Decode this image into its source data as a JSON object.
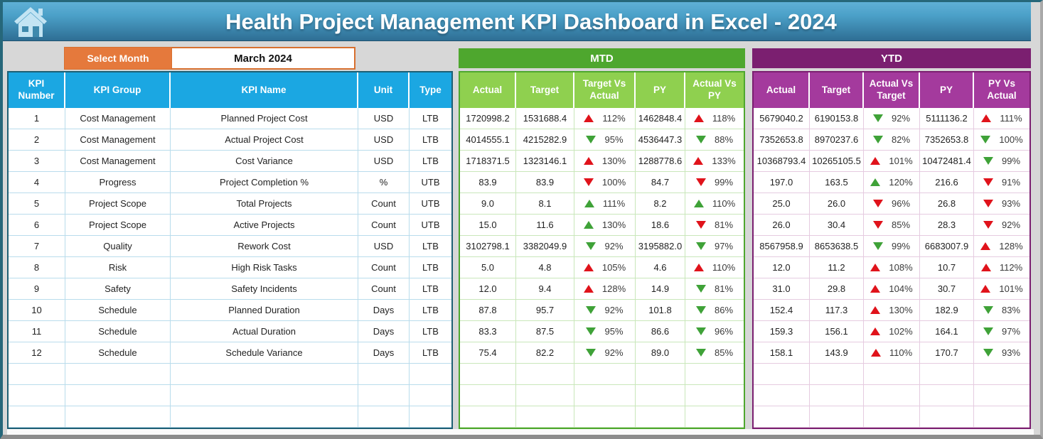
{
  "header": {
    "title": "Health Project Management KPI Dashboard in Excel - 2024"
  },
  "month_selector": {
    "label": "Select Month",
    "value": "March 2024"
  },
  "sections": {
    "mtd_label": "MTD",
    "ytd_label": "YTD"
  },
  "colors": {
    "header_blue_top": "#5FB0D6",
    "header_blue_bottom": "#2E6E94",
    "column_header_blue": "#1BA7E2",
    "mtd_green_dark": "#4EA72E",
    "mtd_green_light": "#8FD04F",
    "ytd_purple_dark": "#7B1F70",
    "ytd_purple_light": "#A43A9D",
    "orange": "#E5793C",
    "trend_red": "#E0131B",
    "trend_green": "#3FA238"
  },
  "table": {
    "left_headers": [
      "KPI Number",
      "KPI Group",
      "KPI Name",
      "Unit",
      "Type"
    ],
    "mtd_headers": [
      "Actual",
      "Target",
      "Target Vs Actual",
      "PY",
      "Actual Vs PY"
    ],
    "ytd_headers": [
      "Actual",
      "Target",
      "Actual Vs Target",
      "PY",
      "PY Vs Actual"
    ],
    "empty_rows": 3,
    "rows": [
      {
        "number": "1",
        "group": "Cost Management",
        "name": "Planned Project Cost",
        "unit": "USD",
        "type": "LTB",
        "mtd": {
          "actual": "1720998.2",
          "target": "1531688.4",
          "target_vs_actual": {
            "arrow": "up",
            "color": "red",
            "value": "112%"
          },
          "py": "1462848.4",
          "actual_vs_py": {
            "arrow": "up",
            "color": "red",
            "value": "118%"
          }
        },
        "ytd": {
          "actual": "5679040.2",
          "target": "6190153.8",
          "actual_vs_target": {
            "arrow": "down",
            "color": "green",
            "value": "92%"
          },
          "py": "5111136.2",
          "py_vs_actual": {
            "arrow": "up",
            "color": "red",
            "value": "111%"
          }
        }
      },
      {
        "number": "2",
        "group": "Cost Management",
        "name": "Actual Project Cost",
        "unit": "USD",
        "type": "LTB",
        "mtd": {
          "actual": "4014555.1",
          "target": "4215282.9",
          "target_vs_actual": {
            "arrow": "down",
            "color": "green",
            "value": "95%"
          },
          "py": "4536447.3",
          "actual_vs_py": {
            "arrow": "down",
            "color": "green",
            "value": "88%"
          }
        },
        "ytd": {
          "actual": "7352653.8",
          "target": "8970237.6",
          "actual_vs_target": {
            "arrow": "down",
            "color": "green",
            "value": "82%"
          },
          "py": "7352653.8",
          "py_vs_actual": {
            "arrow": "down",
            "color": "green",
            "value": "100%"
          }
        }
      },
      {
        "number": "3",
        "group": "Cost Management",
        "name": "Cost Variance",
        "unit": "USD",
        "type": "LTB",
        "mtd": {
          "actual": "1718371.5",
          "target": "1323146.1",
          "target_vs_actual": {
            "arrow": "up",
            "color": "red",
            "value": "130%"
          },
          "py": "1288778.6",
          "actual_vs_py": {
            "arrow": "up",
            "color": "red",
            "value": "133%"
          }
        },
        "ytd": {
          "actual": "10368793.4",
          "target": "10265105.5",
          "actual_vs_target": {
            "arrow": "up",
            "color": "red",
            "value": "101%"
          },
          "py": "10472481.4",
          "py_vs_actual": {
            "arrow": "down",
            "color": "green",
            "value": "99%"
          }
        }
      },
      {
        "number": "4",
        "group": "Progress",
        "name": "Project Completion %",
        "unit": "%",
        "type": "UTB",
        "mtd": {
          "actual": "83.9",
          "target": "83.9",
          "target_vs_actual": {
            "arrow": "down",
            "color": "red",
            "value": "100%"
          },
          "py": "84.7",
          "actual_vs_py": {
            "arrow": "down",
            "color": "red",
            "value": "99%"
          }
        },
        "ytd": {
          "actual": "197.0",
          "target": "163.5",
          "actual_vs_target": {
            "arrow": "up",
            "color": "green",
            "value": "120%"
          },
          "py": "216.6",
          "py_vs_actual": {
            "arrow": "down",
            "color": "red",
            "value": "91%"
          }
        }
      },
      {
        "number": "5",
        "group": "Project Scope",
        "name": "Total Projects",
        "unit": "Count",
        "type": "UTB",
        "mtd": {
          "actual": "9.0",
          "target": "8.1",
          "target_vs_actual": {
            "arrow": "up",
            "color": "green",
            "value": "111%"
          },
          "py": "8.2",
          "actual_vs_py": {
            "arrow": "up",
            "color": "green",
            "value": "110%"
          }
        },
        "ytd": {
          "actual": "25.0",
          "target": "26.0",
          "actual_vs_target": {
            "arrow": "down",
            "color": "red",
            "value": "96%"
          },
          "py": "26.8",
          "py_vs_actual": {
            "arrow": "down",
            "color": "red",
            "value": "93%"
          }
        }
      },
      {
        "number": "6",
        "group": "Project Scope",
        "name": "Active Projects",
        "unit": "Count",
        "type": "UTB",
        "mtd": {
          "actual": "15.0",
          "target": "11.6",
          "target_vs_actual": {
            "arrow": "up",
            "color": "green",
            "value": "130%"
          },
          "py": "18.6",
          "actual_vs_py": {
            "arrow": "down",
            "color": "red",
            "value": "81%"
          }
        },
        "ytd": {
          "actual": "26.0",
          "target": "30.4",
          "actual_vs_target": {
            "arrow": "down",
            "color": "red",
            "value": "85%"
          },
          "py": "28.3",
          "py_vs_actual": {
            "arrow": "down",
            "color": "red",
            "value": "92%"
          }
        }
      },
      {
        "number": "7",
        "group": "Quality",
        "name": "Rework Cost",
        "unit": "USD",
        "type": "LTB",
        "mtd": {
          "actual": "3102798.1",
          "target": "3382049.9",
          "target_vs_actual": {
            "arrow": "down",
            "color": "green",
            "value": "92%"
          },
          "py": "3195882.0",
          "actual_vs_py": {
            "arrow": "down",
            "color": "green",
            "value": "97%"
          }
        },
        "ytd": {
          "actual": "8567958.9",
          "target": "8653638.5",
          "actual_vs_target": {
            "arrow": "down",
            "color": "green",
            "value": "99%"
          },
          "py": "6683007.9",
          "py_vs_actual": {
            "arrow": "up",
            "color": "red",
            "value": "128%"
          }
        }
      },
      {
        "number": "8",
        "group": "Risk",
        "name": "High Risk Tasks",
        "unit": "Count",
        "type": "LTB",
        "mtd": {
          "actual": "5.0",
          "target": "4.8",
          "target_vs_actual": {
            "arrow": "up",
            "color": "red",
            "value": "105%"
          },
          "py": "4.6",
          "actual_vs_py": {
            "arrow": "up",
            "color": "red",
            "value": "110%"
          }
        },
        "ytd": {
          "actual": "12.0",
          "target": "11.2",
          "actual_vs_target": {
            "arrow": "up",
            "color": "red",
            "value": "108%"
          },
          "py": "10.7",
          "py_vs_actual": {
            "arrow": "up",
            "color": "red",
            "value": "112%"
          }
        }
      },
      {
        "number": "9",
        "group": "Safety",
        "name": "Safety Incidents",
        "unit": "Count",
        "type": "LTB",
        "mtd": {
          "actual": "12.0",
          "target": "9.4",
          "target_vs_actual": {
            "arrow": "up",
            "color": "red",
            "value": "128%"
          },
          "py": "14.9",
          "actual_vs_py": {
            "arrow": "down",
            "color": "green",
            "value": "81%"
          }
        },
        "ytd": {
          "actual": "31.0",
          "target": "29.8",
          "actual_vs_target": {
            "arrow": "up",
            "color": "red",
            "value": "104%"
          },
          "py": "30.7",
          "py_vs_actual": {
            "arrow": "up",
            "color": "red",
            "value": "101%"
          }
        }
      },
      {
        "number": "10",
        "group": "Schedule",
        "name": "Planned Duration",
        "unit": "Days",
        "type": "LTB",
        "mtd": {
          "actual": "87.8",
          "target": "95.7",
          "target_vs_actual": {
            "arrow": "down",
            "color": "green",
            "value": "92%"
          },
          "py": "101.8",
          "actual_vs_py": {
            "arrow": "down",
            "color": "green",
            "value": "86%"
          }
        },
        "ytd": {
          "actual": "152.4",
          "target": "117.3",
          "actual_vs_target": {
            "arrow": "up",
            "color": "red",
            "value": "130%"
          },
          "py": "182.9",
          "py_vs_actual": {
            "arrow": "down",
            "color": "green",
            "value": "83%"
          }
        }
      },
      {
        "number": "11",
        "group": "Schedule",
        "name": "Actual Duration",
        "unit": "Days",
        "type": "LTB",
        "mtd": {
          "actual": "83.3",
          "target": "87.5",
          "target_vs_actual": {
            "arrow": "down",
            "color": "green",
            "value": "95%"
          },
          "py": "86.6",
          "actual_vs_py": {
            "arrow": "down",
            "color": "green",
            "value": "96%"
          }
        },
        "ytd": {
          "actual": "159.3",
          "target": "156.1",
          "actual_vs_target": {
            "arrow": "up",
            "color": "red",
            "value": "102%"
          },
          "py": "164.1",
          "py_vs_actual": {
            "arrow": "down",
            "color": "green",
            "value": "97%"
          }
        }
      },
      {
        "number": "12",
        "group": "Schedule",
        "name": "Schedule Variance",
        "unit": "Days",
        "type": "LTB",
        "mtd": {
          "actual": "75.4",
          "target": "82.2",
          "target_vs_actual": {
            "arrow": "down",
            "color": "green",
            "value": "92%"
          },
          "py": "89.0",
          "actual_vs_py": {
            "arrow": "down",
            "color": "green",
            "value": "85%"
          }
        },
        "ytd": {
          "actual": "158.1",
          "target": "143.9",
          "actual_vs_target": {
            "arrow": "up",
            "color": "red",
            "value": "110%"
          },
          "py": "170.7",
          "py_vs_actual": {
            "arrow": "down",
            "color": "green",
            "value": "93%"
          }
        }
      }
    ]
  }
}
